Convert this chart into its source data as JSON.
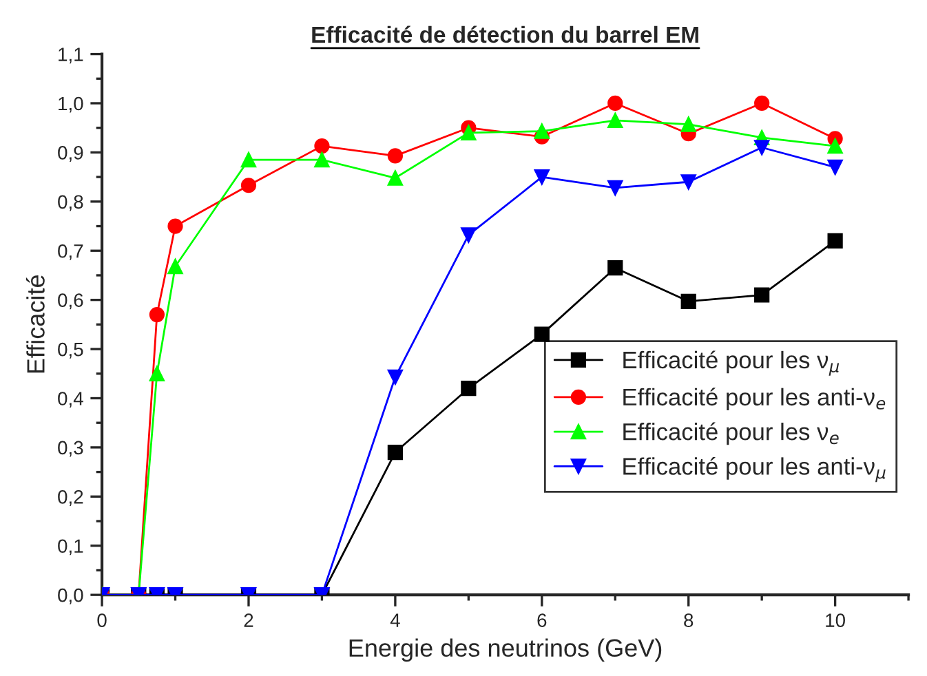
{
  "chart_data": {
    "type": "line",
    "title": "Efficacité de détection du barrel EM",
    "xlabel": "Energie des neutrinos (GeV)",
    "ylabel": "Efficacité",
    "x": [
      0,
      0.5,
      0.75,
      1,
      2,
      3,
      4,
      5,
      6,
      7,
      8,
      9,
      10
    ],
    "series": [
      {
        "name": "Efficacité pour les ν$_{μ}$",
        "color": "#000000",
        "marker": "square",
        "values": [
          0,
          0,
          0,
          0,
          0,
          0,
          0.29,
          0.42,
          0.53,
          0.665,
          0.597,
          0.61,
          0.72
        ]
      },
      {
        "name": "Efficacité pour les anti-ν$_{e}$",
        "color": "#ff0000",
        "marker": "circle",
        "values": [
          0,
          0,
          0.57,
          0.75,
          0.833,
          0.913,
          0.893,
          0.95,
          0.932,
          1.0,
          0.938,
          1.0,
          0.928
        ]
      },
      {
        "name": "Efficacité pour les ν$_{e}$",
        "color": "#00ff00",
        "marker": "triangle",
        "values": [
          0,
          0,
          0.45,
          0.668,
          0.885,
          0.885,
          0.848,
          0.94,
          0.943,
          0.965,
          0.957,
          0.93,
          0.913
        ]
      },
      {
        "name": "Efficacité pour les anti-ν$_{μ}$",
        "color": "#0000ff",
        "marker": "triangle_down",
        "values": [
          0,
          0,
          0,
          0,
          0,
          0,
          0.443,
          0.732,
          0.85,
          0.828,
          0.84,
          0.91,
          0.87
        ]
      }
    ],
    "xlim": [
      0,
      11
    ],
    "xticks": [
      0,
      2,
      4,
      6,
      8,
      10
    ],
    "ylim": [
      0,
      1.1
    ],
    "yticks": [
      {
        "value": 0,
        "label": "0,0"
      },
      {
        "value": 0.1,
        "label": "0,1"
      },
      {
        "value": 0.2,
        "label": "0,2"
      },
      {
        "value": 0.3,
        "label": "0,3"
      },
      {
        "value": 0.4,
        "label": "0,4"
      },
      {
        "value": 0.5,
        "label": "0,5"
      },
      {
        "value": 0.6,
        "label": "0,6"
      },
      {
        "value": 0.7,
        "label": "0,7"
      },
      {
        "value": 0.8,
        "label": "0,8"
      },
      {
        "value": 0.9,
        "label": "0,9"
      },
      {
        "value": 1.0,
        "label": "1,0"
      },
      {
        "value": 1.1,
        "label": "1,1"
      }
    ],
    "grid": false,
    "legend": "right",
    "line_style": "solid"
  }
}
